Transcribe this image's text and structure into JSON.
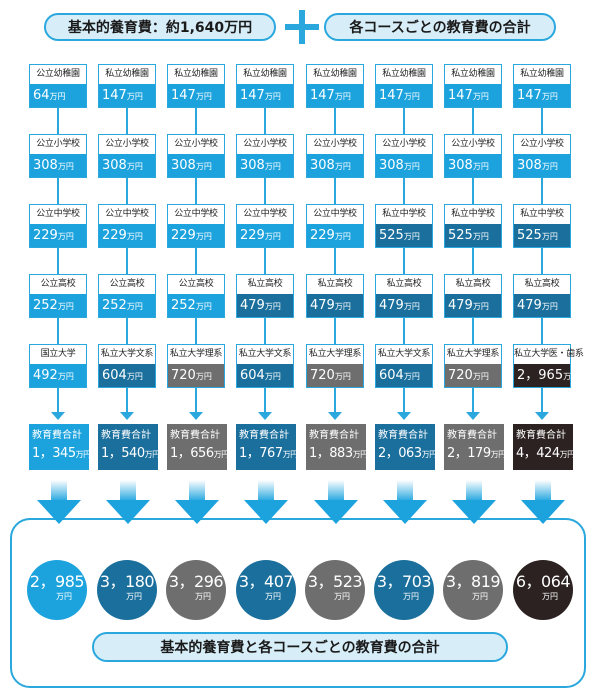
{
  "header": {
    "basic_label": "基本的養育費：約1,640万円",
    "course_label": "各コースごとの教育費の合計"
  },
  "colors": {
    "accent": "#2aa8dd",
    "public": "#1ca3de",
    "private": "#1b6f9c",
    "science": "#6e6e6e",
    "medical": "#2b2221"
  },
  "unit": "万円",
  "total_label": "教育費合計",
  "columns": [
    {
      "stages": [
        {
          "label": "公立幼稚園",
          "value": "64",
          "type": "public"
        },
        {
          "label": "公立小学校",
          "value": "308",
          "type": "public"
        },
        {
          "label": "公立中学校",
          "value": "229",
          "type": "public"
        },
        {
          "label": "公立高校",
          "value": "252",
          "type": "public"
        },
        {
          "label": "国立大学",
          "value": "492",
          "type": "public"
        }
      ],
      "total": "1，345",
      "grand_total": "2，985",
      "color": "public"
    },
    {
      "stages": [
        {
          "label": "私立幼稚園",
          "value": "147",
          "type": "public"
        },
        {
          "label": "公立小学校",
          "value": "308",
          "type": "public"
        },
        {
          "label": "公立中学校",
          "value": "229",
          "type": "public"
        },
        {
          "label": "公立高校",
          "value": "252",
          "type": "public"
        },
        {
          "label": "私立大学文系",
          "value": "604",
          "type": "private"
        }
      ],
      "total": "1，540",
      "grand_total": "3，180",
      "color": "private"
    },
    {
      "stages": [
        {
          "label": "私立幼稚園",
          "value": "147",
          "type": "public"
        },
        {
          "label": "公立小学校",
          "value": "308",
          "type": "public"
        },
        {
          "label": "公立中学校",
          "value": "229",
          "type": "public"
        },
        {
          "label": "公立高校",
          "value": "252",
          "type": "public"
        },
        {
          "label": "私立大学理系",
          "value": "720",
          "type": "science"
        }
      ],
      "total": "1，656",
      "grand_total": "3，296",
      "color": "science"
    },
    {
      "stages": [
        {
          "label": "私立幼稚園",
          "value": "147",
          "type": "public"
        },
        {
          "label": "公立小学校",
          "value": "308",
          "type": "public"
        },
        {
          "label": "公立中学校",
          "value": "229",
          "type": "public"
        },
        {
          "label": "私立高校",
          "value": "479",
          "type": "private"
        },
        {
          "label": "私立大学文系",
          "value": "604",
          "type": "private"
        }
      ],
      "total": "1，767",
      "grand_total": "3，407",
      "color": "private"
    },
    {
      "stages": [
        {
          "label": "私立幼稚園",
          "value": "147",
          "type": "public"
        },
        {
          "label": "公立小学校",
          "value": "308",
          "type": "public"
        },
        {
          "label": "公立中学校",
          "value": "229",
          "type": "public"
        },
        {
          "label": "私立高校",
          "value": "479",
          "type": "private"
        },
        {
          "label": "私立大学理系",
          "value": "720",
          "type": "science"
        }
      ],
      "total": "1，883",
      "grand_total": "3，523",
      "color": "science"
    },
    {
      "stages": [
        {
          "label": "私立幼稚園",
          "value": "147",
          "type": "public"
        },
        {
          "label": "公立小学校",
          "value": "308",
          "type": "public"
        },
        {
          "label": "私立中学校",
          "value": "525",
          "type": "private"
        },
        {
          "label": "私立高校",
          "value": "479",
          "type": "private"
        },
        {
          "label": "私立大学文系",
          "value": "604",
          "type": "private"
        }
      ],
      "total": "2，063",
      "grand_total": "3，703",
      "color": "private"
    },
    {
      "stages": [
        {
          "label": "私立幼稚園",
          "value": "147",
          "type": "public"
        },
        {
          "label": "公立小学校",
          "value": "308",
          "type": "public"
        },
        {
          "label": "私立中学校",
          "value": "525",
          "type": "private"
        },
        {
          "label": "私立高校",
          "value": "479",
          "type": "private"
        },
        {
          "label": "私立大学理系",
          "value": "720",
          "type": "science"
        }
      ],
      "total": "2，179",
      "grand_total": "3，819",
      "color": "science"
    },
    {
      "stages": [
        {
          "label": "私立幼稚園",
          "value": "147",
          "type": "public"
        },
        {
          "label": "公立小学校",
          "value": "308",
          "type": "public"
        },
        {
          "label": "私立中学校",
          "value": "525",
          "type": "private"
        },
        {
          "label": "私立高校",
          "value": "479",
          "type": "private"
        },
        {
          "label": "私立大学医・歯系",
          "value": "2，965",
          "type": "medical"
        }
      ],
      "total": "4，424",
      "grand_total": "6，064",
      "color": "medical"
    }
  ],
  "footer": {
    "label": "基本的養育費と各コースごとの教育費の合計"
  }
}
